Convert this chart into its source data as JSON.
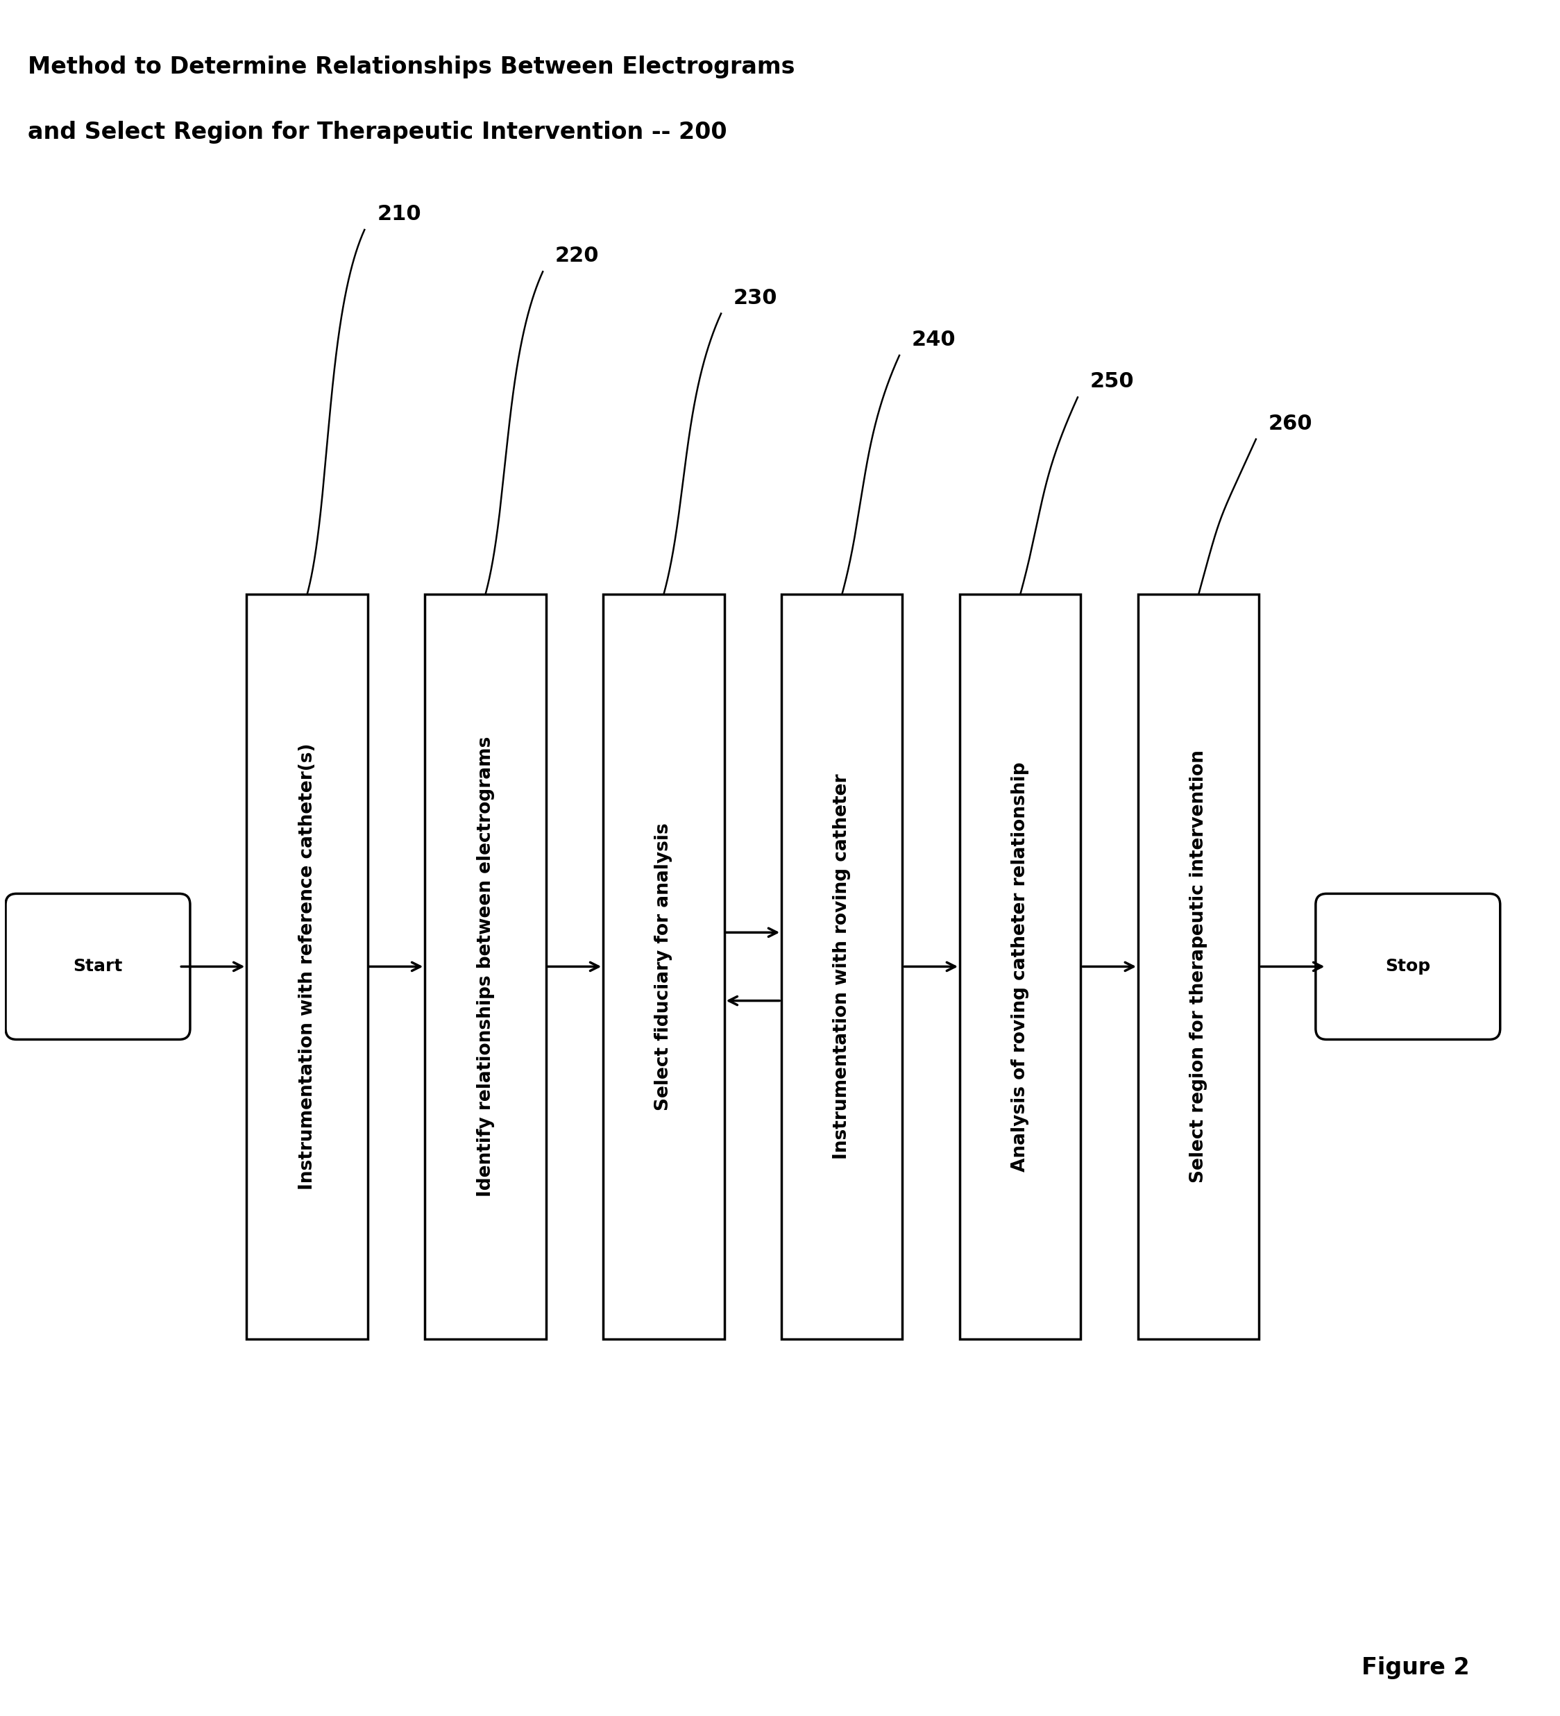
{
  "title_line1": "Method to Determine Relationships Between Electrograms",
  "title_line2": "and Select Region for Therapeutic Intervention -- 200",
  "figure_label": "Figure 2",
  "background_color": "#ffffff",
  "box_color": "#ffffff",
  "box_edge_color": "#000000",
  "arrow_color": "#000000",
  "text_color": "#000000",
  "start_stop_labels": [
    "Start",
    "Stop"
  ],
  "step_labels": [
    "Instrumentation with reference catheter(s)",
    "Identify relationships between electrograms",
    "Select fiduciary for analysis",
    "Instrumentation with roving catheter",
    "Analysis of roving catheter relationship",
    "Select region for therapeutic intervention"
  ],
  "step_numbers": [
    "210",
    "220",
    "230",
    "240",
    "250",
    "260"
  ],
  "title_fontsize": 24,
  "step_fontsize": 19,
  "label_fontsize": 18,
  "number_fontsize": 22,
  "figure_label_fontsize": 24
}
